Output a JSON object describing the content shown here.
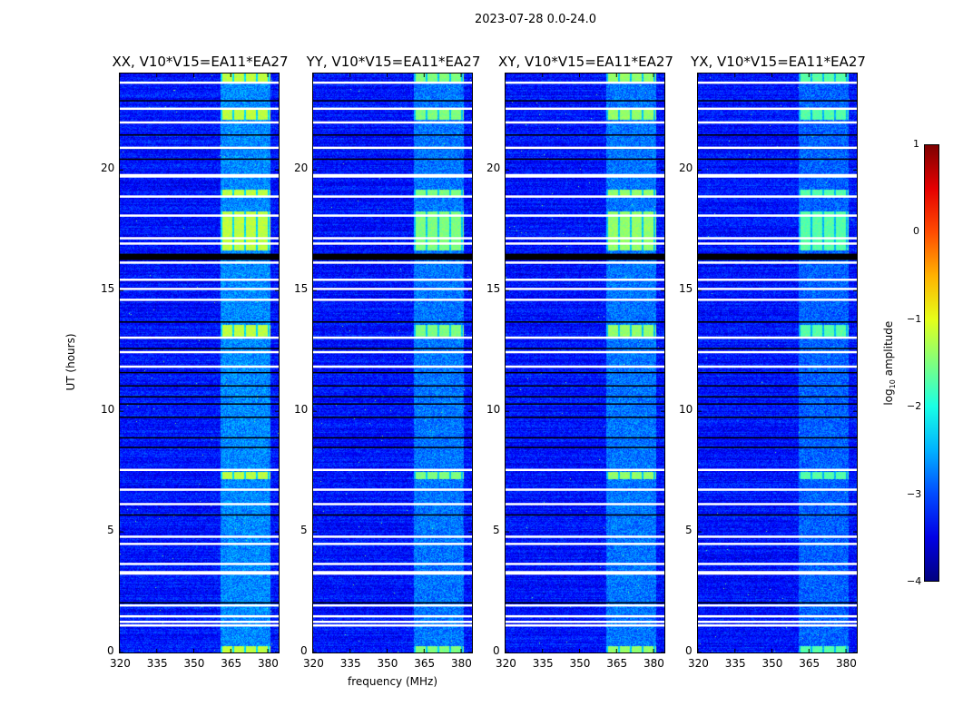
{
  "suptitle": "2023-07-28 0.0-24.0",
  "chart_data": {
    "type": "heatmap",
    "title": "2023-07-28 0.0-24.0",
    "xlabel": "frequency (MHz)",
    "ylabel": "UT (hours)",
    "xlim": [
      320,
      384.4
    ],
    "ylim": [
      0,
      24
    ],
    "xticks": [
      "320",
      "335",
      "350",
      "365",
      "380"
    ],
    "yticks": [
      "0",
      "5",
      "10",
      "15",
      "20"
    ],
    "panels": [
      {
        "title": "XX, V10*V15=EA11*EA27",
        "burst_level": -1.2,
        "band_level": -2.3
      },
      {
        "title": "YY, V10*V15=EA11*EA27",
        "burst_level": -1.5,
        "band_level": -2.4
      },
      {
        "title": "XY, V10*V15=EA11*EA27",
        "burst_level": -1.4,
        "band_level": -2.4
      },
      {
        "title": "YX, V10*V15=EA11*EA27",
        "burst_level": -1.7,
        "band_level": -2.5
      }
    ],
    "background_level": -3.3,
    "rfi_band_mhz": [
      360.7,
      381
    ],
    "bursts_hours": [
      [
        23.65,
        24
      ],
      [
        22.1,
        22.6
      ],
      [
        18.9,
        19.2
      ],
      [
        16.7,
        18.3
      ],
      [
        13.1,
        13.6
      ],
      [
        7.2,
        7.5
      ],
      [
        0,
        0.3
      ]
    ],
    "flagged_white_hours": [
      23.62,
      22.54,
      21.97,
      20.92,
      19.76,
      18.9,
      18.11,
      17.17,
      16.95,
      16.16,
      15.45,
      15.07,
      14.62,
      13.05,
      12.45,
      11.85,
      7.57,
      6.75,
      6.15,
      4.8,
      4.5,
      3.67,
      3.3,
      1.95,
      1.5,
      1.27,
      1.12
    ],
    "flagged_black_hours": [
      22.87,
      21.45,
      20.9,
      20.45,
      16.4,
      13.7,
      12.6,
      11.6,
      11.05,
      10.6,
      10.3,
      9.75,
      8.9,
      8.5,
      6.15,
      5.7,
      2.06,
      1.12
    ],
    "colorbar": {
      "label": "log10 amplitude",
      "range": [
        -4,
        1
      ],
      "ticks": [
        "1",
        "0",
        "−1",
        "−2",
        "−3",
        "−4"
      ],
      "colormap": "jet"
    }
  }
}
